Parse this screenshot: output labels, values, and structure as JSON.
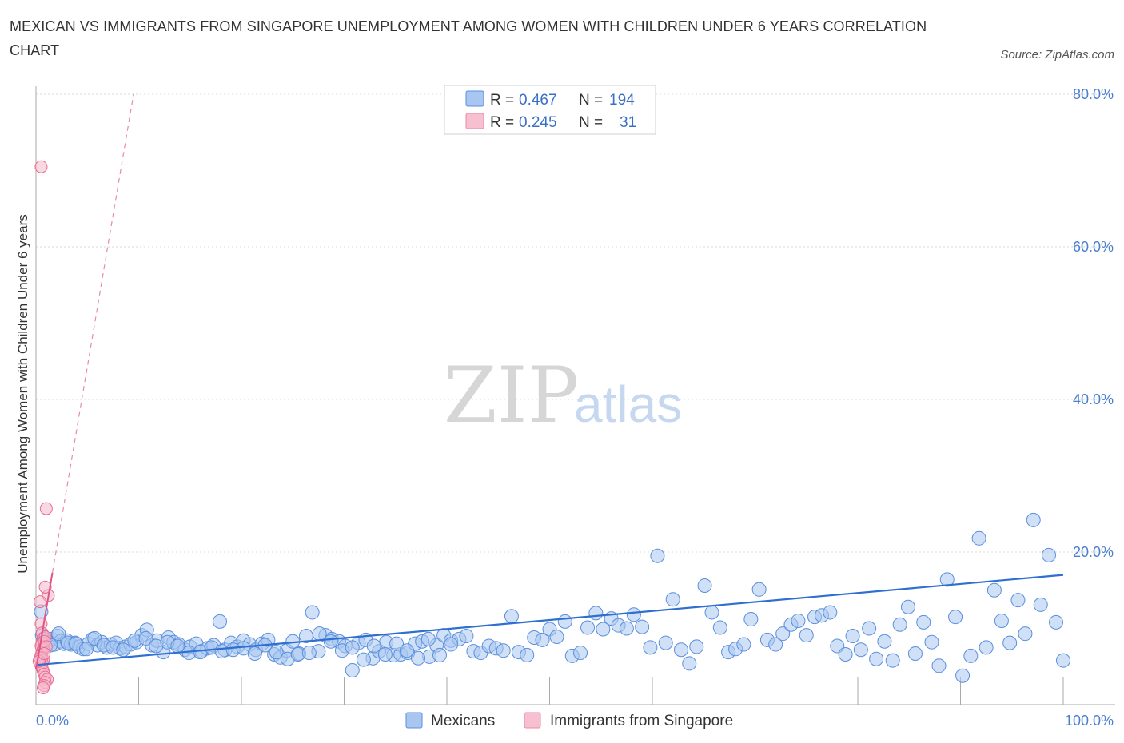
{
  "title": "MEXICAN VS IMMIGRANTS FROM SINGAPORE UNEMPLOYMENT AMONG WOMEN WITH CHILDREN UNDER 6 YEARS CORRELATION CHART",
  "source": "Source: ZipAtlas.com",
  "watermark": {
    "zip": "ZIP",
    "atlas": "atlas"
  },
  "colors": {
    "blue": "#5b8fdc",
    "blue_fill": "#a8c6f0",
    "pink": "#e86a92",
    "pink_fill": "#f6b8cb",
    "axis_label": "#4a7fd0",
    "grid": "#d8d8d8"
  },
  "legend": {
    "rows": [
      {
        "r_label": "R = ",
        "r_value": "0.467",
        "n_label": "N = ",
        "n_value": "194"
      },
      {
        "r_label": "R = ",
        "r_value": "0.245",
        "n_label": "N = ",
        "n_value": "31"
      }
    ]
  },
  "bottom_legend": [
    "Mexicans",
    "Immigrants from Singapore"
  ],
  "chart_data": {
    "type": "scatter",
    "xlabel": "",
    "ylabel": "Unemployment Among Women with Children Under 6 years",
    "xlim": [
      0,
      100
    ],
    "ylim": [
      0,
      80
    ],
    "x_tick_labels": [
      "0.0%",
      "100.0%"
    ],
    "y_ticks": [
      20,
      40,
      60,
      80
    ],
    "y_tick_labels": [
      "20.0%",
      "40.0%",
      "60.0%",
      "80.0%"
    ],
    "series": [
      {
        "name": "Mexicans",
        "trend": {
          "x": [
            0,
            100
          ],
          "y": [
            5.2,
            17.0
          ],
          "style": "solid"
        },
        "points": [
          [
            0.5,
            12.2
          ],
          [
            0.6,
            9.1
          ],
          [
            1.2,
            8.2
          ],
          [
            1.5,
            8.6
          ],
          [
            1.8,
            7.9
          ],
          [
            2.1,
            9.0
          ],
          [
            2.4,
            8.3
          ],
          [
            2.7,
            8.0
          ],
          [
            3.0,
            8.4
          ],
          [
            3.4,
            7.9
          ],
          [
            3.8,
            8.1
          ],
          [
            4.2,
            7.6
          ],
          [
            4.6,
            7.3
          ],
          [
            5.1,
            8.0
          ],
          [
            5.5,
            8.6
          ],
          [
            6.0,
            7.8
          ],
          [
            6.4,
            8.2
          ],
          [
            6.9,
            7.5
          ],
          [
            7.3,
            7.9
          ],
          [
            7.8,
            8.1
          ],
          [
            8.2,
            7.4
          ],
          [
            8.7,
            7.6
          ],
          [
            9.2,
            7.9
          ],
          [
            9.8,
            8.2
          ],
          [
            10.3,
            9.1
          ],
          [
            10.8,
            9.8
          ],
          [
            11.3,
            7.8
          ],
          [
            11.8,
            8.4
          ],
          [
            12.4,
            6.9
          ],
          [
            12.9,
            8.8
          ],
          [
            13.4,
            8.2
          ],
          [
            13.9,
            7.9
          ],
          [
            14.5,
            7.2
          ],
          [
            15.0,
            7.6
          ],
          [
            15.6,
            8.0
          ],
          [
            16.1,
            7.0
          ],
          [
            16.7,
            7.4
          ],
          [
            17.3,
            7.8
          ],
          [
            17.9,
            10.9
          ],
          [
            18.4,
            7.2
          ],
          [
            19.0,
            8.1
          ],
          [
            19.6,
            7.6
          ],
          [
            20.2,
            8.4
          ],
          [
            20.8,
            7.9
          ],
          [
            21.4,
            7.2
          ],
          [
            22.0,
            8.0
          ],
          [
            22.6,
            8.5
          ],
          [
            23.2,
            6.6
          ],
          [
            23.8,
            6.2
          ],
          [
            24.4,
            7.1
          ],
          [
            25.0,
            8.3
          ],
          [
            25.6,
            6.7
          ],
          [
            26.3,
            9.0
          ],
          [
            26.9,
            12.1
          ],
          [
            27.5,
            7.0
          ],
          [
            28.2,
            9.1
          ],
          [
            28.8,
            8.6
          ],
          [
            29.5,
            8.3
          ],
          [
            30.1,
            7.7
          ],
          [
            30.8,
            4.5
          ],
          [
            31.4,
            8.1
          ],
          [
            32.1,
            8.5
          ],
          [
            32.8,
            6.1
          ],
          [
            33.4,
            7.0
          ],
          [
            34.1,
            8.2
          ],
          [
            34.8,
            6.5
          ],
          [
            35.5,
            6.6
          ],
          [
            36.2,
            6.8
          ],
          [
            36.9,
            8.0
          ],
          [
            37.6,
            8.3
          ],
          [
            38.3,
            6.3
          ],
          [
            39.0,
            7.8
          ],
          [
            39.7,
            9.1
          ],
          [
            40.4,
            8.4
          ],
          [
            41.2,
            8.6
          ],
          [
            41.9,
            9.0
          ],
          [
            42.6,
            7.0
          ],
          [
            43.3,
            6.8
          ],
          [
            44.1,
            7.7
          ],
          [
            44.8,
            7.4
          ],
          [
            45.5,
            7.1
          ],
          [
            46.3,
            11.6
          ],
          [
            47.0,
            6.9
          ],
          [
            47.8,
            6.5
          ],
          [
            48.5,
            8.8
          ],
          [
            49.3,
            8.5
          ],
          [
            50.0,
            9.9
          ],
          [
            50.7,
            8.9
          ],
          [
            51.5,
            10.9
          ],
          [
            52.2,
            6.4
          ],
          [
            53.0,
            6.8
          ],
          [
            53.7,
            10.1
          ],
          [
            54.5,
            12.0
          ],
          [
            55.2,
            9.9
          ],
          [
            56.0,
            11.3
          ],
          [
            56.7,
            10.4
          ],
          [
            57.5,
            10.0
          ],
          [
            58.2,
            11.8
          ],
          [
            59.0,
            10.2
          ],
          [
            59.8,
            7.5
          ],
          [
            60.5,
            19.5
          ],
          [
            61.3,
            8.1
          ],
          [
            62.0,
            13.8
          ],
          [
            62.8,
            7.2
          ],
          [
            63.6,
            5.4
          ],
          [
            64.3,
            7.6
          ],
          [
            65.1,
            15.6
          ],
          [
            65.8,
            12.1
          ],
          [
            66.6,
            10.1
          ],
          [
            67.4,
            6.9
          ],
          [
            68.1,
            7.3
          ],
          [
            68.9,
            7.9
          ],
          [
            69.6,
            11.2
          ],
          [
            70.4,
            15.1
          ],
          [
            71.2,
            8.5
          ],
          [
            72.0,
            7.9
          ],
          [
            72.7,
            9.3
          ],
          [
            73.5,
            10.5
          ],
          [
            74.2,
            11.0
          ],
          [
            75.0,
            9.1
          ],
          [
            75.8,
            11.5
          ],
          [
            76.5,
            11.7
          ],
          [
            77.3,
            12.1
          ],
          [
            78.0,
            7.7
          ],
          [
            78.8,
            6.6
          ],
          [
            79.5,
            9.0
          ],
          [
            80.3,
            7.2
          ],
          [
            81.1,
            10.0
          ],
          [
            81.8,
            6.0
          ],
          [
            82.6,
            8.3
          ],
          [
            83.4,
            5.8
          ],
          [
            84.1,
            10.5
          ],
          [
            84.9,
            12.8
          ],
          [
            85.6,
            6.7
          ],
          [
            86.4,
            10.8
          ],
          [
            87.2,
            8.2
          ],
          [
            87.9,
            5.1
          ],
          [
            88.7,
            16.4
          ],
          [
            89.5,
            11.5
          ],
          [
            90.2,
            3.8
          ],
          [
            91.0,
            6.4
          ],
          [
            91.8,
            21.8
          ],
          [
            92.5,
            7.5
          ],
          [
            93.3,
            15.0
          ],
          [
            94.0,
            11.0
          ],
          [
            94.8,
            8.1
          ],
          [
            95.6,
            13.7
          ],
          [
            96.3,
            9.3
          ],
          [
            97.1,
            24.2
          ],
          [
            97.8,
            13.1
          ],
          [
            98.6,
            19.6
          ],
          [
            99.3,
            10.8
          ],
          [
            100.0,
            5.8
          ],
          [
            0.9,
            8.7
          ],
          [
            1.4,
            7.8
          ],
          [
            2.2,
            9.3
          ],
          [
            3.1,
            8.1
          ],
          [
            3.9,
            8.0
          ],
          [
            4.9,
            7.3
          ],
          [
            5.7,
            8.7
          ],
          [
            6.6,
            7.8
          ],
          [
            7.5,
            7.5
          ],
          [
            8.5,
            7.2
          ],
          [
            9.6,
            8.4
          ],
          [
            10.7,
            8.7
          ],
          [
            11.7,
            7.7
          ],
          [
            12.8,
            8.2
          ],
          [
            13.8,
            7.7
          ],
          [
            14.9,
            6.8
          ],
          [
            16.0,
            6.9
          ],
          [
            17.1,
            7.5
          ],
          [
            18.1,
            7.0
          ],
          [
            19.2,
            7.2
          ],
          [
            20.2,
            7.4
          ],
          [
            21.3,
            6.7
          ],
          [
            22.3,
            7.8
          ],
          [
            23.4,
            6.9
          ],
          [
            24.5,
            6.0
          ],
          [
            25.5,
            6.6
          ],
          [
            26.6,
            6.8
          ],
          [
            27.6,
            9.3
          ],
          [
            28.7,
            8.3
          ],
          [
            29.8,
            7.1
          ],
          [
            30.8,
            7.5
          ],
          [
            31.9,
            5.9
          ],
          [
            32.9,
            7.7
          ],
          [
            34.0,
            6.6
          ],
          [
            35.1,
            8.0
          ],
          [
            36.1,
            7.1
          ],
          [
            37.2,
            6.1
          ],
          [
            38.2,
            8.6
          ],
          [
            39.3,
            6.5
          ],
          [
            40.4,
            7.9
          ]
        ]
      },
      {
        "name": "Immigrants from Singapore",
        "trend": {
          "x": [
            0,
            9.5
          ],
          "y": [
            4.6,
            80.0
          ],
          "style": "dashed",
          "solid_until_x": 1.6
        },
        "points": [
          [
            0.5,
            70.5
          ],
          [
            1.0,
            25.7
          ],
          [
            1.2,
            14.3
          ],
          [
            0.9,
            15.4
          ],
          [
            0.4,
            13.5
          ],
          [
            0.5,
            10.6
          ],
          [
            0.6,
            9.4
          ],
          [
            0.7,
            8.7
          ],
          [
            0.6,
            8.1
          ],
          [
            0.5,
            7.7
          ],
          [
            0.7,
            7.3
          ],
          [
            0.6,
            6.9
          ],
          [
            0.5,
            6.5
          ],
          [
            0.6,
            6.2
          ],
          [
            0.7,
            5.8
          ],
          [
            0.6,
            5.5
          ],
          [
            0.5,
            5.1
          ],
          [
            0.6,
            4.8
          ],
          [
            0.7,
            4.4
          ],
          [
            0.8,
            4.0
          ],
          [
            0.9,
            3.6
          ],
          [
            1.1,
            3.3
          ],
          [
            0.9,
            2.9
          ],
          [
            0.8,
            2.5
          ],
          [
            0.7,
            2.2
          ],
          [
            0.9,
            8.9
          ],
          [
            0.8,
            8.3
          ],
          [
            1.0,
            7.6
          ],
          [
            0.4,
            6.1
          ],
          [
            0.3,
            5.7
          ],
          [
            0.8,
            6.7
          ]
        ]
      }
    ]
  }
}
